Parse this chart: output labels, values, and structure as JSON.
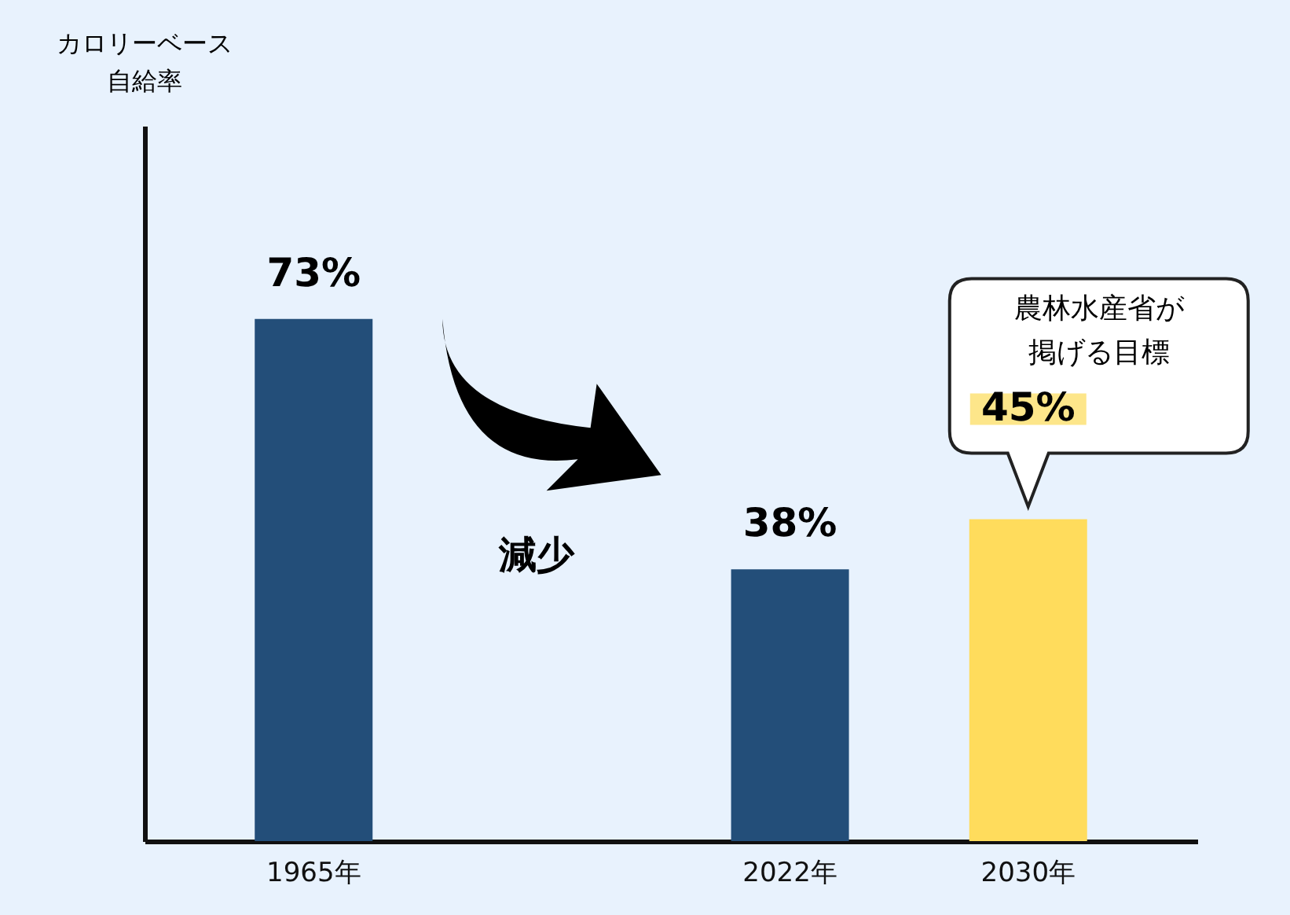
{
  "chart_data": {
    "type": "bar",
    "ylabel": "カロリーベース自給率",
    "categories": [
      "1965年",
      null,
      "2022年",
      "2030年"
    ],
    "values": [
      73,
      null,
      38,
      45
    ],
    "colors": [
      "#234e79",
      null,
      "#234e79",
      "#ffdc5c"
    ],
    "value_labels": [
      "73%",
      null,
      "38%",
      "45%"
    ],
    "ylim": [
      0,
      100
    ],
    "tick_labels": "x",
    "grid": false,
    "annotations": [
      "減少",
      "農林水産省が掲げる目標"
    ]
  }
}
